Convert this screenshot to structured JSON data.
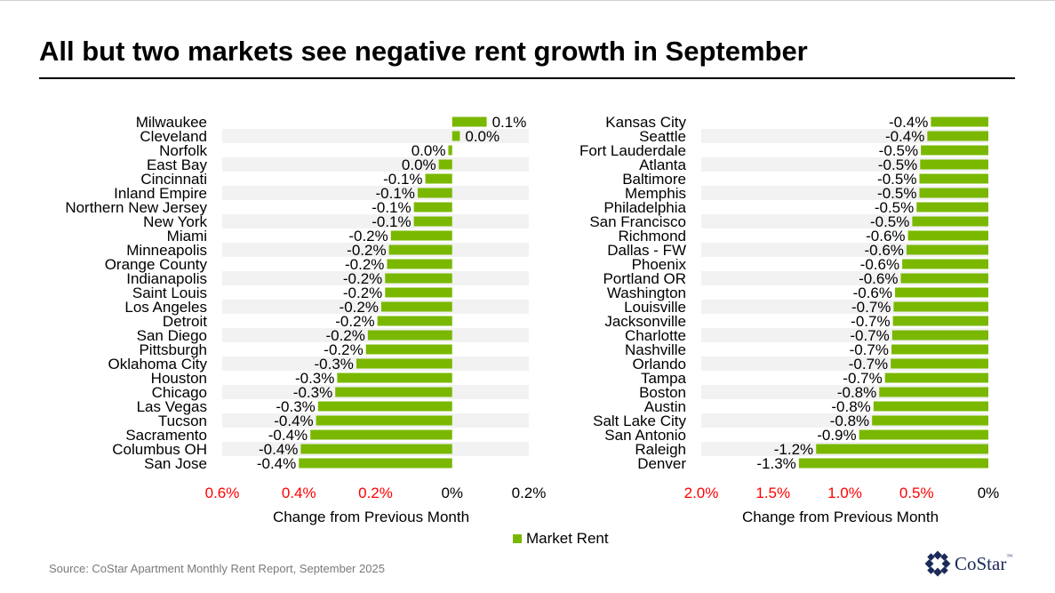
{
  "title": "All but two markets see negative rent growth in September",
  "legend": {
    "label": "Market Rent",
    "color": "#7ab800"
  },
  "source": "Source: CoStar Apartment Monthly Rent Report, September 2025",
  "logo": {
    "text": "CoStar",
    "tm": "™"
  },
  "colors": {
    "bar": "#7ab800",
    "negative_tick": "#ff0000",
    "band": "#f2f2f2"
  },
  "chart_data": [
    {
      "type": "bar",
      "orientation": "horizontal",
      "xlabel": "Change from Previous Month",
      "xlim": [
        -0.6,
        0.2
      ],
      "xticks": [
        {
          "value": -0.6,
          "label": "0.6%",
          "red": true
        },
        {
          "value": -0.4,
          "label": "0.4%",
          "red": true
        },
        {
          "value": -0.2,
          "label": "0.2%",
          "red": true
        },
        {
          "value": 0,
          "label": "0%",
          "red": false
        },
        {
          "value": 0.2,
          "label": "0.2%",
          "red": false
        }
      ],
      "categories": [
        "Milwaukee",
        "Cleveland",
        "Norfolk",
        "East Bay",
        "Cincinnati",
        "Inland Empire",
        "Northern New Jersey",
        "New York",
        "Miami",
        "Minneapolis",
        "Orange County",
        "Indianapolis",
        "Saint Louis",
        "Los Angeles",
        "Detroit",
        "San Diego",
        "Pittsburgh",
        "Oklahoma City",
        "Houston",
        "Chicago",
        "Las Vegas",
        "Tucson",
        "Sacramento",
        "Columbus OH",
        "San Jose"
      ],
      "values": [
        0.09,
        0.02,
        -0.01,
        -0.035,
        -0.07,
        -0.09,
        -0.1,
        -0.1,
        -0.16,
        -0.165,
        -0.17,
        -0.175,
        -0.175,
        -0.185,
        -0.195,
        -0.22,
        -0.225,
        -0.25,
        -0.3,
        -0.305,
        -0.35,
        -0.355,
        -0.37,
        -0.395,
        -0.4
      ],
      "data_labels": [
        "0.1%",
        "0.0%",
        "0.0%",
        "0.0%",
        "-0.1%",
        "-0.1%",
        "-0.1%",
        "-0.1%",
        "-0.2%",
        "-0.2%",
        "-0.2%",
        "-0.2%",
        "-0.2%",
        "-0.2%",
        "-0.2%",
        "-0.2%",
        "-0.2%",
        "-0.3%",
        "-0.3%",
        "-0.3%",
        "-0.3%",
        "-0.4%",
        "-0.4%",
        "-0.4%",
        "-0.4%"
      ],
      "grid": false
    },
    {
      "type": "bar",
      "orientation": "horizontal",
      "xlabel": "Change from Previous Month",
      "xlim": [
        -2.0,
        0
      ],
      "xticks": [
        {
          "value": -2.0,
          "label": "2.0%",
          "red": true
        },
        {
          "value": -1.5,
          "label": "1.5%",
          "red": true
        },
        {
          "value": -1.0,
          "label": "1.0%",
          "red": true
        },
        {
          "value": -0.5,
          "label": "0.5%",
          "red": true
        },
        {
          "value": 0,
          "label": "0%",
          "red": false
        }
      ],
      "categories": [
        "Kansas City",
        "Seattle",
        "Fort Lauderdale",
        "Atlanta",
        "Baltimore",
        "Memphis",
        "Philadelphia",
        "San Francisco",
        "Richmond",
        "Dallas - FW",
        "Phoenix",
        "Portland OR",
        "Washington",
        "Louisville",
        "Jacksonville",
        "Charlotte",
        "Nashville",
        "Orlando",
        "Tampa",
        "Boston",
        "Austin",
        "Salt Lake City",
        "San Antonio",
        "Raleigh",
        "Denver"
      ],
      "values": [
        -0.4,
        -0.425,
        -0.47,
        -0.475,
        -0.48,
        -0.48,
        -0.5,
        -0.53,
        -0.56,
        -0.57,
        -0.6,
        -0.61,
        -0.65,
        -0.66,
        -0.665,
        -0.67,
        -0.675,
        -0.68,
        -0.72,
        -0.76,
        -0.8,
        -0.81,
        -0.9,
        -1.2,
        -1.32
      ],
      "data_labels": [
        "-0.4%",
        "-0.4%",
        "-0.5%",
        "-0.5%",
        "-0.5%",
        "-0.5%",
        "-0.5%",
        "-0.5%",
        "-0.6%",
        "-0.6%",
        "-0.6%",
        "-0.6%",
        "-0.6%",
        "-0.7%",
        "-0.7%",
        "-0.7%",
        "-0.7%",
        "-0.7%",
        "-0.7%",
        "-0.8%",
        "-0.8%",
        "-0.8%",
        "-0.9%",
        "-1.2%",
        "-1.3%"
      ],
      "grid": false
    }
  ]
}
